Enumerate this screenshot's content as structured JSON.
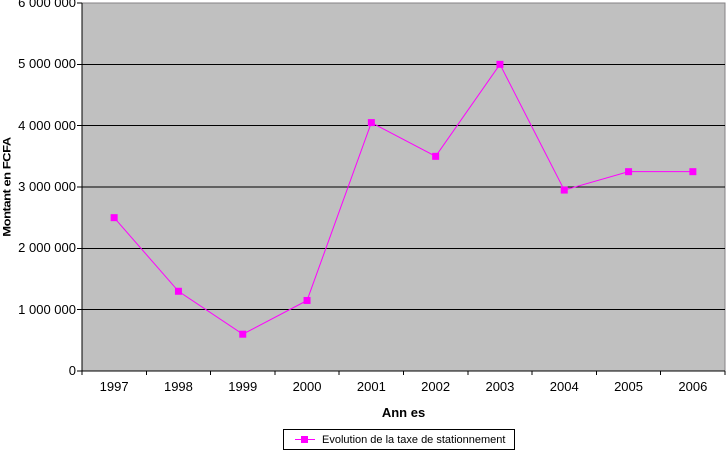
{
  "chart_data": {
    "type": "line",
    "title": "",
    "xlabel": "Ann es",
    "ylabel": "Montant en FCFA",
    "categories": [
      "1997",
      "1998",
      "1999",
      "2000",
      "2001",
      "2002",
      "2003",
      "2004",
      "2005",
      "2006"
    ],
    "series": [
      {
        "name": "Evolution de la taxe de stationnement",
        "color": "#FF00FF",
        "marker": "square",
        "values": [
          2500000,
          1300000,
          600000,
          1150000,
          4050000,
          3500000,
          5000000,
          2950000,
          3250000,
          3250000
        ]
      }
    ],
    "ylim": [
      0,
      6000000
    ],
    "ytick_interval": 1000000,
    "ytick_labels": [
      "0",
      "1 000 000",
      "2 000 000",
      "3 000 000",
      "4 000 000",
      "5 000 000",
      "6 000 000"
    ],
    "grid": "horizontal",
    "legend_position": "bottom",
    "colors": {
      "plot_background": "#C0C0C0",
      "plot_border": "#848284",
      "gridline": "#000000",
      "axis": "#000000",
      "series": "#FF00FF"
    }
  }
}
